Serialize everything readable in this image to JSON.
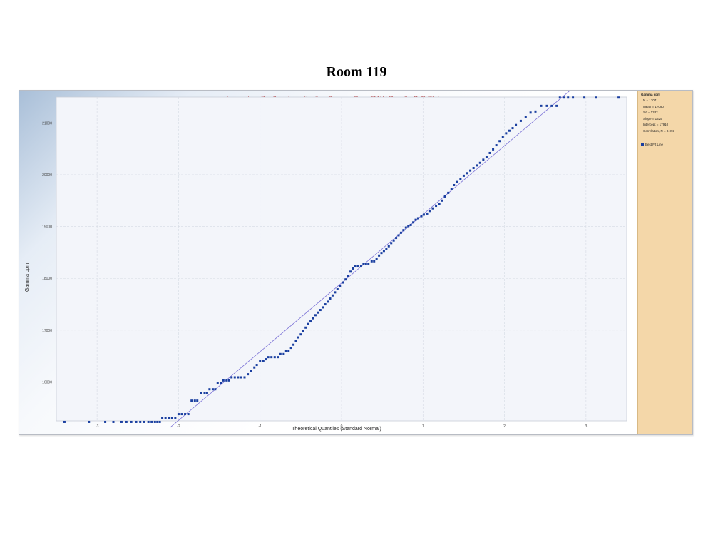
{
  "page": {
    "heading": "Room 119"
  },
  "legend": {
    "stats_title": "Gamma cpm",
    "stats": [
      "N = 1707",
      "Mean = 17090",
      "Sd = 1332",
      "Slope = 1325",
      "Intercept = 17910",
      "Correlation, R = 0.993"
    ],
    "best_fit_label": "Best Fit Line"
  },
  "chart_data": {
    "type": "scatter",
    "title": "Laboratory Subfloor Investigation Gamma Scan RAW Results Q-Q Plot",
    "xlabel": "Theoretical Quantiles (Standard Normal)",
    "ylabel": "Gamma cpm",
    "xlim": [
      -3.5,
      3.5
    ],
    "ylim": [
      15250,
      21500
    ],
    "x_ticks": [
      -3,
      -2,
      -1,
      0,
      1,
      2,
      3
    ],
    "x_tick_labels": [
      "-3",
      "-2",
      "-1",
      "0",
      "1",
      "2",
      "3"
    ],
    "y_ticks": [
      16000,
      17000,
      18000,
      19000,
      20000,
      21000
    ],
    "y_tick_labels": [
      "16000",
      "17000",
      "18000",
      "19000",
      "20000",
      "21000"
    ],
    "grid": true,
    "point_color": "#1a3fa0",
    "line_color": "#7b72d6",
    "fit_line": {
      "slope": 1325,
      "intercept": 17910,
      "x_from": -2.1,
      "x_to": 2.85
    },
    "series": [
      {
        "name": "Gamma cpm",
        "points": [
          [
            -3.4,
            15230
          ],
          [
            -3.1,
            15230
          ],
          [
            -2.9,
            15230
          ],
          [
            -2.8,
            15230
          ],
          [
            -2.7,
            15230
          ],
          [
            -2.64,
            15230
          ],
          [
            -2.58,
            15230
          ],
          [
            -2.52,
            15230
          ],
          [
            -2.47,
            15230
          ],
          [
            -2.42,
            15230
          ],
          [
            -2.37,
            15230
          ],
          [
            -2.33,
            15230
          ],
          [
            -2.29,
            15230
          ],
          [
            -2.26,
            15230
          ],
          [
            -2.23,
            15230
          ],
          [
            -2.2,
            15300
          ],
          [
            -2.16,
            15300
          ],
          [
            -2.12,
            15300
          ],
          [
            -2.08,
            15300
          ],
          [
            -2.04,
            15300
          ],
          [
            -2.0,
            15380
          ],
          [
            -1.96,
            15380
          ],
          [
            -1.92,
            15380
          ],
          [
            -1.88,
            15380
          ],
          [
            -1.84,
            15640
          ],
          [
            -1.8,
            15640
          ],
          [
            -1.77,
            15640
          ],
          [
            -1.72,
            15790
          ],
          [
            -1.68,
            15790
          ],
          [
            -1.65,
            15790
          ],
          [
            -1.62,
            15860
          ],
          [
            -1.58,
            15860
          ],
          [
            -1.55,
            15860
          ],
          [
            -1.52,
            15980
          ],
          [
            -1.48,
            15980
          ],
          [
            -1.45,
            16030
          ],
          [
            -1.41,
            16030
          ],
          [
            -1.38,
            16030
          ],
          [
            -1.35,
            16090
          ],
          [
            -1.31,
            16090
          ],
          [
            -1.27,
            16090
          ],
          [
            -1.23,
            16090
          ],
          [
            -1.19,
            16090
          ],
          [
            -1.15,
            16150
          ],
          [
            -1.11,
            16210
          ],
          [
            -1.07,
            16280
          ],
          [
            -1.04,
            16330
          ],
          [
            -1.0,
            16400
          ],
          [
            -0.96,
            16400
          ],
          [
            -0.93,
            16440
          ],
          [
            -0.9,
            16480
          ],
          [
            -0.86,
            16480
          ],
          [
            -0.82,
            16480
          ],
          [
            -0.78,
            16480
          ],
          [
            -0.75,
            16540
          ],
          [
            -0.71,
            16540
          ],
          [
            -0.68,
            16600
          ],
          [
            -0.65,
            16600
          ],
          [
            -0.62,
            16660
          ],
          [
            -0.59,
            16720
          ],
          [
            -0.56,
            16790
          ],
          [
            -0.53,
            16860
          ],
          [
            -0.5,
            16920
          ],
          [
            -0.47,
            16990
          ],
          [
            -0.44,
            17050
          ],
          [
            -0.41,
            17120
          ],
          [
            -0.38,
            17170
          ],
          [
            -0.35,
            17230
          ],
          [
            -0.32,
            17290
          ],
          [
            -0.29,
            17340
          ],
          [
            -0.26,
            17390
          ],
          [
            -0.23,
            17440
          ],
          [
            -0.2,
            17500
          ],
          [
            -0.17,
            17550
          ],
          [
            -0.14,
            17610
          ],
          [
            -0.11,
            17670
          ],
          [
            -0.08,
            17730
          ],
          [
            -0.05,
            17790
          ],
          [
            -0.02,
            17850
          ],
          [
            0.02,
            17920
          ],
          [
            0.05,
            17980
          ],
          [
            0.08,
            18050
          ],
          [
            0.11,
            18130
          ],
          [
            0.14,
            18190
          ],
          [
            0.17,
            18230
          ],
          [
            0.2,
            18230
          ],
          [
            0.24,
            18230
          ],
          [
            0.27,
            18280
          ],
          [
            0.3,
            18280
          ],
          [
            0.33,
            18280
          ],
          [
            0.37,
            18330
          ],
          [
            0.4,
            18330
          ],
          [
            0.43,
            18380
          ],
          [
            0.46,
            18440
          ],
          [
            0.49,
            18490
          ],
          [
            0.52,
            18530
          ],
          [
            0.55,
            18570
          ],
          [
            0.58,
            18620
          ],
          [
            0.61,
            18680
          ],
          [
            0.64,
            18730
          ],
          [
            0.67,
            18780
          ],
          [
            0.7,
            18830
          ],
          [
            0.73,
            18880
          ],
          [
            0.76,
            18930
          ],
          [
            0.79,
            18980
          ],
          [
            0.82,
            19010
          ],
          [
            0.85,
            19030
          ],
          [
            0.88,
            19080
          ],
          [
            0.91,
            19130
          ],
          [
            0.94,
            19160
          ],
          [
            0.98,
            19200
          ],
          [
            1.01,
            19230
          ],
          [
            1.05,
            19250
          ],
          [
            1.08,
            19300
          ],
          [
            1.12,
            19350
          ],
          [
            1.16,
            19400
          ],
          [
            1.2,
            19440
          ],
          [
            1.23,
            19500
          ],
          [
            1.27,
            19580
          ],
          [
            1.31,
            19650
          ],
          [
            1.35,
            19730
          ],
          [
            1.38,
            19800
          ],
          [
            1.42,
            19860
          ],
          [
            1.46,
            19920
          ],
          [
            1.5,
            19980
          ],
          [
            1.54,
            20030
          ],
          [
            1.58,
            20080
          ],
          [
            1.62,
            20130
          ],
          [
            1.66,
            20180
          ],
          [
            1.7,
            20230
          ],
          [
            1.74,
            20290
          ],
          [
            1.78,
            20350
          ],
          [
            1.82,
            20420
          ],
          [
            1.86,
            20490
          ],
          [
            1.9,
            20570
          ],
          [
            1.94,
            20650
          ],
          [
            1.98,
            20730
          ],
          [
            2.02,
            20800
          ],
          [
            2.06,
            20850
          ],
          [
            2.1,
            20900
          ],
          [
            2.14,
            20960
          ],
          [
            2.2,
            21040
          ],
          [
            2.26,
            21120
          ],
          [
            2.32,
            21200
          ],
          [
            2.38,
            21220
          ],
          [
            2.45,
            21330
          ],
          [
            2.52,
            21330
          ],
          [
            2.58,
            21330
          ],
          [
            2.64,
            21330
          ],
          [
            2.68,
            21490
          ],
          [
            2.73,
            21490
          ],
          [
            2.78,
            21490
          ],
          [
            2.84,
            21490
          ],
          [
            2.98,
            21490
          ],
          [
            3.12,
            21490
          ],
          [
            3.4,
            21490
          ]
        ]
      }
    ]
  }
}
